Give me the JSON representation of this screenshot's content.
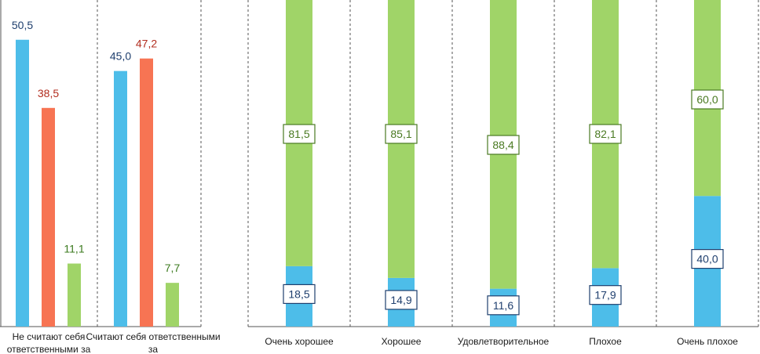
{
  "colors": {
    "blue": "#4dbde9",
    "orange": "#f77453",
    "green": "#a0d468",
    "label_blue": "#1f3f6e",
    "label_red": "#b22d1f",
    "label_green": "#3b7a1e",
    "label_green_box": "#4a7a22"
  },
  "chart_data": [
    {
      "type": "bar",
      "categories": [
        "Не считают себя ответственными за",
        "Считают себя ответственными за"
      ],
      "series": [
        {
          "values": [
            50.5,
            45.0
          ],
          "labels": [
            "50,5",
            "45,0"
          ]
        },
        {
          "values": [
            38.5,
            47.2
          ],
          "labels": [
            "38,5",
            "47,2"
          ]
        },
        {
          "values": [
            11.1,
            7.7
          ],
          "labels": [
            "11,1",
            "7,7"
          ]
        }
      ],
      "ylim": [
        0,
        57.5
      ]
    },
    {
      "type": "bar",
      "stacked": true,
      "percent": true,
      "categories": [
        "Очень хорошее",
        "Хорошее",
        "Удовлетворительное",
        "Плохое",
        "Очень плохое"
      ],
      "series": [
        {
          "values": [
            18.5,
            14.9,
            11.6,
            17.9,
            40.0
          ],
          "labels": [
            "18,5",
            "14,9",
            "11,6",
            "17,9",
            "40,0"
          ]
        },
        {
          "values": [
            81.5,
            85.1,
            88.4,
            82.1,
            60.0
          ],
          "labels": [
            "81,5",
            "85,1",
            "88,4",
            "82,1",
            "60,0"
          ]
        }
      ]
    }
  ]
}
